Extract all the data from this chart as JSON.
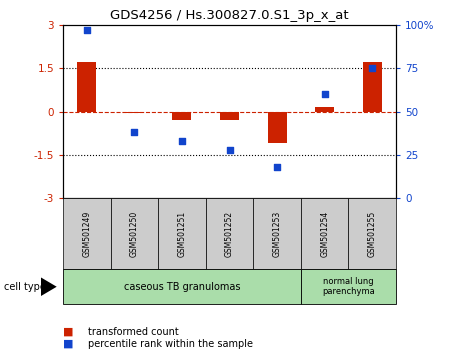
{
  "title": "GDS4256 / Hs.300827.0.S1_3p_x_at",
  "samples": [
    "GSM501249",
    "GSM501250",
    "GSM501251",
    "GSM501252",
    "GSM501253",
    "GSM501254",
    "GSM501255"
  ],
  "transformed_count": [
    1.7,
    -0.05,
    -0.3,
    -0.3,
    -1.1,
    0.15,
    1.7
  ],
  "percentile_rank": [
    97,
    38,
    33,
    28,
    18,
    60,
    75
  ],
  "ylim_left": [
    -3,
    3
  ],
  "ylim_right": [
    0,
    100
  ],
  "yticks_left": [
    -3,
    -1.5,
    0,
    1.5,
    3
  ],
  "yticks_right": [
    0,
    25,
    50,
    75,
    100
  ],
  "ytick_labels_left": [
    "-3",
    "-1.5",
    "0",
    "1.5",
    "3"
  ],
  "ytick_labels_right": [
    "0",
    "25",
    "50",
    "75",
    "100%"
  ],
  "red_color": "#cc2200",
  "blue_color": "#1144cc",
  "group1_label": "caseous TB granulomas",
  "group2_label": "normal lung\nparenchyma",
  "group_color": "#aaddaa",
  "cell_type_label": "cell type",
  "legend_red": "transformed count",
  "legend_blue": "percentile rank within the sample",
  "bar_width": 0.4,
  "bg_color": "#ffffff",
  "sample_box_color": "#cccccc"
}
